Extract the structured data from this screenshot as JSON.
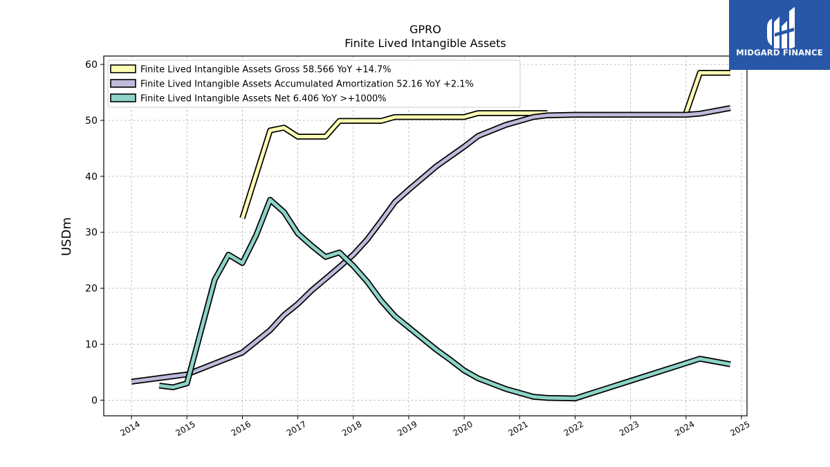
{
  "brand": {
    "name": "MIDGARD FINANCE",
    "logo_icon": "midgard-logo-icon",
    "background_color": "#2857a8"
  },
  "chart_data": {
    "type": "line",
    "title": "GPRO",
    "subtitle": "Finite Lived Intangible Assets",
    "xlabel": "",
    "ylabel": "USDm",
    "xlim": [
      2013.5,
      2025.1
    ],
    "ylim": [
      -2.8,
      61.5
    ],
    "x_ticks": [
      "2014",
      "2015",
      "2016",
      "2017",
      "2018",
      "2019",
      "2020",
      "2021",
      "2022",
      "2023",
      "2024",
      "2025"
    ],
    "y_ticks": [
      "0",
      "10",
      "20",
      "30",
      "40",
      "50",
      "60"
    ],
    "grid": true,
    "legend_position": "top-left",
    "series": [
      {
        "name": "Finite Lived Intangible Assets Gross",
        "legend_label": "Finite Lived Intangible Assets Gross  58.566 YoY +14.7%",
        "color": "#ffffb3",
        "segments": [
          [
            [
              2016.0,
              32.5
            ],
            [
              2016.5,
              48.2
            ],
            [
              2016.75,
              48.7
            ],
            [
              2017.0,
              47.1
            ],
            [
              2017.5,
              47.1
            ],
            [
              2017.75,
              49.9
            ],
            [
              2018.5,
              49.9
            ],
            [
              2018.75,
              50.6
            ],
            [
              2020.0,
              50.6
            ],
            [
              2020.25,
              51.3
            ],
            [
              2021.5,
              51.3
            ]
          ],
          [
            [
              2024.0,
              51.3
            ],
            [
              2024.25,
              58.5
            ],
            [
              2024.8,
              58.5
            ]
          ]
        ]
      },
      {
        "name": "Finite Lived Intangible Assets Accumulated Amortization",
        "legend_label": "Finite Lived Intangible Assets Accumulated Amortization  52.16 YoY +2.1%",
        "color": "#bebada",
        "segments": [
          [
            [
              2014.0,
              3.3
            ],
            [
              2015.0,
              4.6
            ],
            [
              2016.0,
              8.5
            ],
            [
              2016.5,
              12.5
            ],
            [
              2016.75,
              15.2
            ],
            [
              2017.0,
              17.2
            ],
            [
              2017.25,
              19.6
            ],
            [
              2017.5,
              21.7
            ],
            [
              2017.75,
              23.8
            ],
            [
              2018.0,
              26.0
            ],
            [
              2018.25,
              28.7
            ],
            [
              2018.5,
              32.0
            ],
            [
              2018.75,
              35.4
            ],
            [
              2019.0,
              37.6
            ],
            [
              2019.5,
              41.8
            ],
            [
              2020.0,
              45.3
            ],
            [
              2020.25,
              47.2
            ],
            [
              2020.75,
              49.2
            ],
            [
              2021.25,
              50.6
            ],
            [
              2021.5,
              50.9
            ],
            [
              2022.0,
              51.0
            ],
            [
              2024.0,
              51.0
            ],
            [
              2024.25,
              51.2
            ],
            [
              2024.8,
              52.2
            ]
          ]
        ]
      },
      {
        "name": "Finite Lived Intangible Assets Net",
        "legend_label": "Finite Lived Intangible Assets Net  6.406 YoY >+1000%",
        "color": "#8dd3c7",
        "segments": [
          [
            [
              2014.5,
              2.6
            ],
            [
              2014.75,
              2.3
            ],
            [
              2015.0,
              3.0
            ],
            [
              2015.5,
              21.5
            ],
            [
              2015.75,
              26.0
            ],
            [
              2016.0,
              24.5
            ],
            [
              2016.25,
              29.5
            ],
            [
              2016.5,
              35.8
            ],
            [
              2016.75,
              33.6
            ],
            [
              2017.0,
              29.8
            ],
            [
              2017.25,
              27.6
            ],
            [
              2017.5,
              25.6
            ],
            [
              2017.75,
              26.4
            ],
            [
              2018.0,
              24.0
            ],
            [
              2018.25,
              21.2
            ],
            [
              2018.5,
              17.8
            ],
            [
              2018.75,
              15.0
            ],
            [
              2019.0,
              13.0
            ],
            [
              2019.25,
              11.0
            ],
            [
              2019.5,
              9.0
            ],
            [
              2019.75,
              7.2
            ],
            [
              2020.0,
              5.3
            ],
            [
              2020.25,
              3.9
            ],
            [
              2020.75,
              2.0
            ],
            [
              2021.25,
              0.6
            ],
            [
              2021.5,
              0.4
            ],
            [
              2022.0,
              0.3
            ],
            [
              2024.25,
              7.4
            ],
            [
              2024.8,
              6.4
            ]
          ]
        ]
      }
    ]
  }
}
